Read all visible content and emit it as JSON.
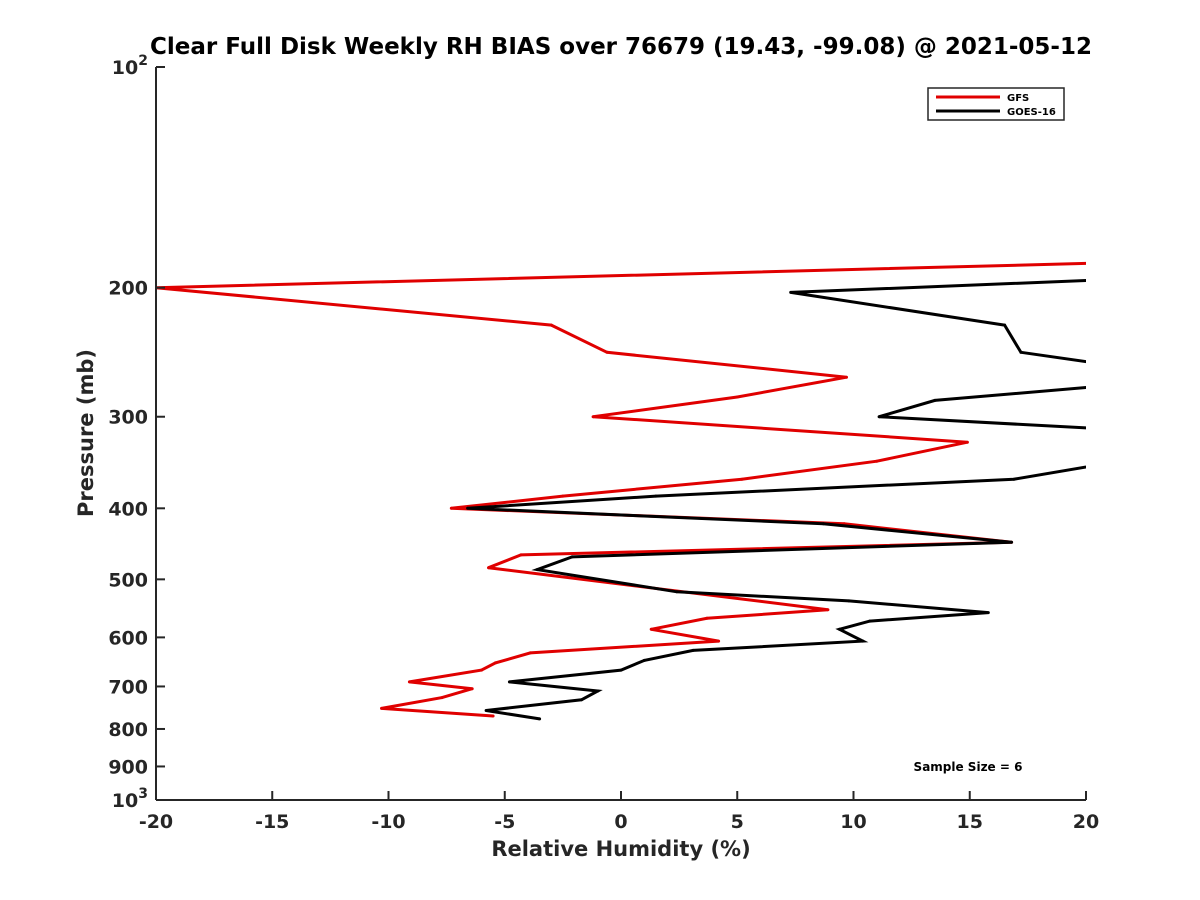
{
  "chart_data": {
    "type": "line",
    "title": "Clear Full Disk Weekly RH BIAS over 76679 (19.43, -99.08) @ 2021-05-12",
    "xlabel": "Relative Humidity (%)",
    "ylabel": "Pressure (mb)",
    "xlim": [
      -20,
      20
    ],
    "ylim": [
      100,
      1000
    ],
    "y_scale": "log",
    "y_reversed": true,
    "grid": false,
    "legend_position": "top-right",
    "x_ticks": [
      "-20",
      "-15",
      "-10",
      "-5",
      "0",
      "5",
      "10",
      "15",
      "20"
    ],
    "y_ticks": [
      {
        "value": 100,
        "base": "10",
        "exp": "2"
      },
      {
        "value": 200,
        "label": "200"
      },
      {
        "value": 300,
        "label": "300"
      },
      {
        "value": 400,
        "label": "400"
      },
      {
        "value": 500,
        "label": "500"
      },
      {
        "value": 600,
        "label": "600"
      },
      {
        "value": 700,
        "label": "700"
      },
      {
        "value": 800,
        "label": "800"
      },
      {
        "value": 900,
        "label": "900"
      },
      {
        "value": 1000,
        "base": "10",
        "exp": "3"
      }
    ],
    "series": [
      {
        "name": "GFS",
        "color": "#e00000",
        "x": [
          21,
          -20,
          -3,
          -0.6,
          9.7,
          5,
          -1.2,
          14.9,
          11,
          5.2,
          -2.5,
          -7.3,
          9.6,
          16.8,
          -4.3,
          -5.7,
          8.9,
          3.7,
          1.3,
          4.2,
          -3.9,
          -5.4,
          -6,
          -9.1,
          -6.4,
          -7.7,
          -10.3,
          -5.5
        ],
        "y": [
          185,
          200,
          225,
          245,
          265,
          282,
          300,
          325,
          345,
          365,
          385,
          400,
          420,
          445,
          463,
          482,
          550,
          565,
          585,
          607,
          630,
          650,
          665,
          690,
          705,
          725,
          750,
          768
        ]
      },
      {
        "name": "GOES-16",
        "color": "#000000",
        "x": [
          21,
          7.3,
          16.5,
          17.2,
          21,
          21,
          13.5,
          11.1,
          21,
          21,
          16.9,
          1.5,
          -6.6,
          8.7,
          16.8,
          -2.1,
          -3.6,
          2.4,
          9.8,
          15.8,
          10.7,
          9.4,
          10.4,
          3.1,
          1,
          0,
          -4.8,
          -1,
          -1.7,
          -5.8,
          -3.5
        ],
        "y": [
          195,
          203,
          225,
          245,
          255,
          272,
          285,
          300,
          312,
          347,
          365,
          385,
          400,
          420,
          445,
          466,
          485,
          520,
          535,
          555,
          570,
          585,
          607,
          625,
          645,
          665,
          690,
          710,
          730,
          755,
          775
        ]
      }
    ],
    "annotations": [
      "Sample Size = 6"
    ]
  }
}
